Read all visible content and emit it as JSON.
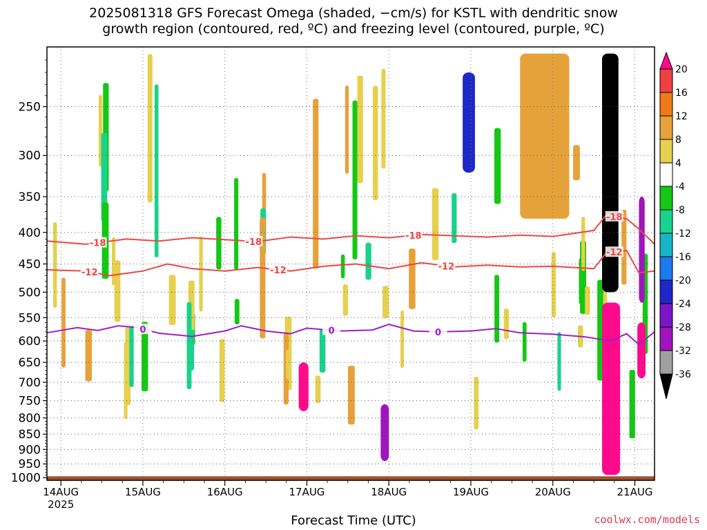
{
  "title": {
    "line1": "2025081318 GFS Forecast Omega (shaded, −cm/s) for KSTL with dendritic snow",
    "line2": "growth region (contoured, red, ºC) and freezing level (contoured, purple, ºC)"
  },
  "credit": "coolwx.com/models",
  "colors": {
    "ground": "#a0522d",
    "dgz_contour": "#ef4545",
    "freezing_contour": "#9b1ec8",
    "grid": "#555555"
  },
  "chart_data": {
    "type": "heatmap",
    "xlabel": "Forecast Time (UTC)",
    "ylabel": "",
    "x_ticks": [
      "14AUG",
      "15AUG",
      "16AUG",
      "17AUG",
      "18AUG",
      "19AUG",
      "20AUG",
      "21AUG"
    ],
    "x_year_label": "2025",
    "y_ticks": [
      250,
      300,
      350,
      400,
      450,
      500,
      550,
      600,
      650,
      700,
      750,
      800,
      850,
      900,
      950,
      1000
    ],
    "y_scale": "log-pressure",
    "xlim": [
      -0.17,
      7.24
    ],
    "ylim": [
      1010,
      200
    ],
    "grid": true,
    "colorbar": {
      "labels": [
        20,
        16,
        12,
        8,
        4,
        -4,
        -8,
        -12,
        -16,
        -20,
        -24,
        -28,
        -32,
        -36
      ],
      "colors": [
        "#ff0a8c",
        "#ee4040",
        "#f07a18",
        "#e6a23a",
        "#e6d04c",
        "#ffffff",
        "#14c814",
        "#19d28c",
        "#19b4c8",
        "#1e78f0",
        "#1e28c8",
        "#7b16c8",
        "#a014be",
        "#a0a0a0",
        "#000000"
      ]
    },
    "contours": [
      {
        "kind": "dgz",
        "label": "-18",
        "points": [
          [
            -0.17,
            413
          ],
          [
            0.3,
            418
          ],
          [
            0.8,
            410
          ],
          [
            1.2,
            413
          ],
          [
            1.6,
            408
          ],
          [
            2.0,
            411
          ],
          [
            2.4,
            414
          ],
          [
            2.8,
            407
          ],
          [
            3.2,
            410
          ],
          [
            3.6,
            405
          ],
          [
            4.0,
            408
          ],
          [
            4.4,
            403
          ],
          [
            4.8,
            405
          ],
          [
            5.2,
            407
          ],
          [
            5.6,
            404
          ],
          [
            6.0,
            406
          ],
          [
            6.5,
            397
          ],
          [
            6.65,
            375
          ],
          [
            6.9,
            380
          ],
          [
            7.05,
            395
          ],
          [
            7.24,
            418
          ]
        ]
      },
      {
        "kind": "dgz",
        "label": "-12",
        "points": [
          [
            -0.17,
            460
          ],
          [
            0.3,
            462
          ],
          [
            0.6,
            470
          ],
          [
            1.0,
            462
          ],
          [
            1.3,
            450
          ],
          [
            1.6,
            458
          ],
          [
            2.0,
            462
          ],
          [
            2.4,
            456
          ],
          [
            2.8,
            462
          ],
          [
            3.2,
            454
          ],
          [
            3.6,
            450
          ],
          [
            4.0,
            458
          ],
          [
            4.4,
            448
          ],
          [
            4.8,
            455
          ],
          [
            5.2,
            452
          ],
          [
            5.6,
            455
          ],
          [
            6.0,
            454
          ],
          [
            6.5,
            458
          ],
          [
            6.65,
            432
          ],
          [
            6.9,
            428
          ],
          [
            7.05,
            465
          ],
          [
            7.24,
            462
          ]
        ]
      },
      {
        "kind": "freezing",
        "label": "0",
        "points": [
          [
            -0.17,
            582
          ],
          [
            0.2,
            571
          ],
          [
            0.45,
            577
          ],
          [
            0.7,
            567
          ],
          [
            0.9,
            570
          ],
          [
            1.2,
            583
          ],
          [
            1.6,
            590
          ],
          [
            2.0,
            578
          ],
          [
            2.2,
            567
          ],
          [
            2.5,
            578
          ],
          [
            2.8,
            584
          ],
          [
            3.0,
            572
          ],
          [
            3.4,
            578
          ],
          [
            3.8,
            576
          ],
          [
            4.0,
            564
          ],
          [
            4.3,
            578
          ],
          [
            4.6,
            580
          ],
          [
            5.0,
            578
          ],
          [
            5.3,
            573
          ],
          [
            5.6,
            582
          ],
          [
            6.0,
            585
          ],
          [
            6.4,
            591
          ],
          [
            6.7,
            600
          ],
          [
            6.9,
            584
          ],
          [
            7.05,
            608
          ],
          [
            7.24,
            580
          ]
        ]
      }
    ],
    "regions": [
      {
        "t": [
          6.6,
          6.8
        ],
        "p": [
          205,
          500
        ],
        "w": -36
      },
      {
        "t": [
          6.6,
          6.82
        ],
        "p": [
          520,
          990
        ],
        "w": 20
      },
      {
        "t": [
          7.05,
          7.12
        ],
        "p": [
          350,
          520
        ],
        "w": -28
      },
      {
        "t": [
          7.03,
          7.13
        ],
        "p": [
          560,
          690
        ],
        "w": 20
      },
      {
        "t": [
          2.9,
          3.02
        ],
        "p": [
          650,
          780
        ],
        "w": 20
      },
      {
        "t": [
          3.9,
          4.0
        ],
        "p": [
          760,
          940
        ],
        "w": -28
      },
      {
        "t": [
          5.6,
          6.2
        ],
        "p": [
          205,
          380
        ],
        "w": 8
      },
      {
        "t": [
          4.9,
          5.05
        ],
        "p": [
          220,
          320
        ],
        "w": -20
      }
    ]
  }
}
